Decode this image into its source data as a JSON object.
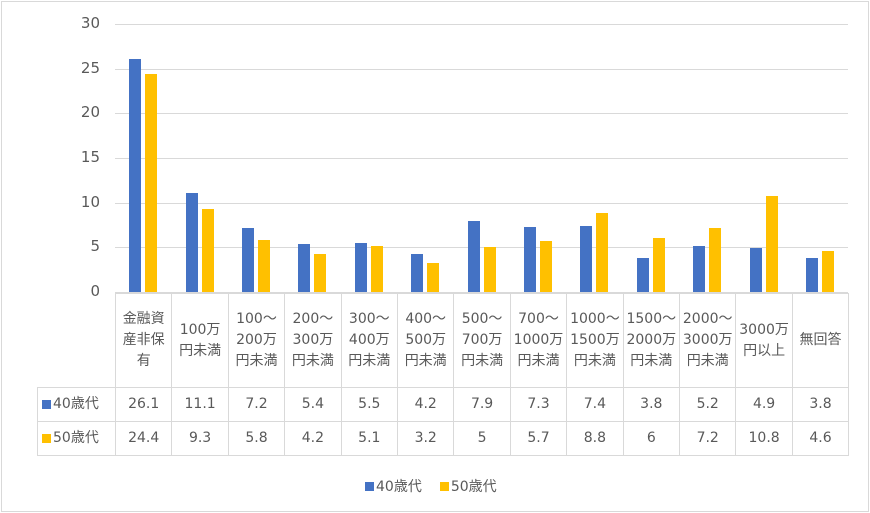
{
  "chart_data": {
    "type": "bar",
    "title": "",
    "xlabel": "",
    "ylabel": "",
    "ylim": [
      0,
      30
    ],
    "yticks": [
      0,
      5,
      10,
      15,
      20,
      25,
      30
    ],
    "grid": true,
    "legend_position": "bottom",
    "data_table": true,
    "categories": [
      "金融資産非保有",
      "100万円未満",
      "100〜200万円未満",
      "200〜300万円未満",
      "300〜400万円未満",
      "400〜500万円未満",
      "500〜700万円未満",
      "700〜1000万円未満",
      "1000〜1500万円未満",
      "1500〜2000万円未満",
      "2000〜3000万円未満",
      "3000万円以上",
      "無回答"
    ],
    "category_display": [
      "金融資\n産非保\n有",
      "100万\n円未満",
      "100〜\n200万\n円未満",
      "200〜\n300万\n円未満",
      "300〜\n400万\n円未満",
      "400〜\n500万\n円未満",
      "500〜\n700万\n円未満",
      "700〜\n1000万\n円未満",
      "1000〜\n1500万\n円未満",
      "1500〜\n2000万\n円未満",
      "2000〜\n3000万\n円未満",
      "3000万\n円以上",
      "無回答"
    ],
    "series": [
      {
        "name": "40歳代",
        "color": "#4472c4",
        "values": [
          26.1,
          11.1,
          7.2,
          5.4,
          5.5,
          4.2,
          7.9,
          7.3,
          7.4,
          3.8,
          5.2,
          4.9,
          3.8
        ],
        "labels": [
          "26.1",
          "11.1",
          "7.2",
          "5.4",
          "5.5",
          "4.2",
          "7.9",
          "7.3",
          "7.4",
          "3.8",
          "5.2",
          "4.9",
          "3.8"
        ]
      },
      {
        "name": "50歳代",
        "color": "#ffc000",
        "values": [
          24.4,
          9.3,
          5.8,
          4.2,
          5.1,
          3.2,
          5,
          5.7,
          8.8,
          6,
          7.2,
          10.8,
          4.6
        ],
        "labels": [
          "24.4",
          "9.3",
          "5.8",
          "4.2",
          "5.1",
          "3.2",
          "5",
          "5.7",
          "8.8",
          "6",
          "7.2",
          "10.8",
          "4.6"
        ]
      }
    ]
  },
  "legend": {
    "items": [
      {
        "label": "40歳代",
        "color": "#4472c4"
      },
      {
        "label": "50歳代",
        "color": "#ffc000"
      }
    ]
  }
}
